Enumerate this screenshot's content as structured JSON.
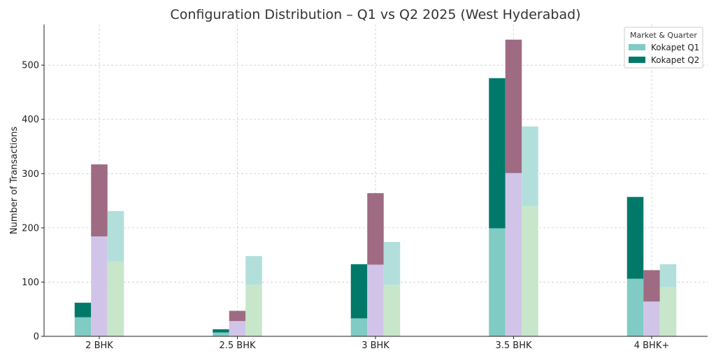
{
  "chart_data": {
    "type": "bar",
    "title": "Configuration Distribution – Q1 vs Q2 2025 (West Hyderabad)",
    "xlabel": "",
    "ylabel": "Number of Transactions",
    "ylim": [
      0,
      575
    ],
    "yticks": [
      0,
      100,
      200,
      300,
      400,
      500
    ],
    "grid": true,
    "legend_placement": "top-right",
    "legend_title": "Market & Quarter",
    "legend_entries": [
      {
        "label": "Kokapet Q1",
        "color": "#80cbc4"
      },
      {
        "label": "Kokapet Q2",
        "color": "#00796b"
      }
    ],
    "categories": [
      "2 BHK",
      "2.5 BHK",
      "3 BHK",
      "3.5 BHK",
      "4 BHK+"
    ],
    "groups": [
      {
        "q1": 35,
        "q2": 62,
        "q1_color": "#80cbc4",
        "q2_color": "#00796b"
      },
      {
        "q1": 184,
        "q2": 317,
        "q1_color": "#d1c4e9",
        "q2_color": "#9e6b82"
      },
      {
        "q1": 138,
        "q2": 231,
        "q1_color": "#c8e6c9",
        "q2_color": "#b2dfdb"
      }
    ],
    "series": [
      {
        "group": 0,
        "q1": [
          35,
          7,
          33,
          199,
          106
        ],
        "q2": [
          62,
          13,
          133,
          476,
          257
        ]
      },
      {
        "group": 1,
        "q1": [
          184,
          28,
          132,
          301,
          64
        ],
        "q2": [
          317,
          47,
          264,
          547,
          122
        ]
      },
      {
        "group": 2,
        "q1": [
          138,
          95,
          95,
          240,
          91
        ],
        "q2": [
          231,
          148,
          174,
          387,
          133
        ]
      }
    ],
    "colors": [
      {
        "q1": "#80cbc4",
        "q2": "#00796b"
      },
      {
        "q1": "#d1c4e9",
        "q2": "#9e6b82"
      },
      {
        "q1": "#c8e6c9",
        "q2": "#b2dfdb"
      }
    ]
  }
}
